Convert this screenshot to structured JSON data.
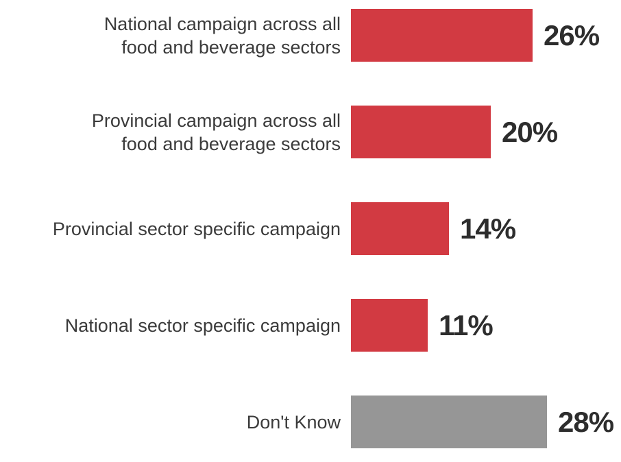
{
  "chart_data": {
    "type": "bar",
    "orientation": "horizontal",
    "title": "",
    "xlabel": "",
    "ylabel": "",
    "grid": false,
    "legend": false,
    "data_labels": "outside-end",
    "xlim": [
      0,
      28
    ],
    "categories": [
      "National campaign across all food and beverage sectors",
      "Provincial campaign across all food and beverage sectors",
      "Provincial sector specific campaign",
      "National sector specific campaign",
      "Don't Know"
    ],
    "values": [
      26,
      20,
      14,
      11,
      28
    ],
    "colors": {
      "bar_red": "#d23a42",
      "bar_gray": "#969696",
      "label_text": "#3b3b3b",
      "value_text": "#2d2d2d"
    },
    "items": [
      {
        "label": "National campaign across all\nfood and beverage sectors",
        "value": 26,
        "value_label": "26%",
        "color": "#d23a42"
      },
      {
        "label": "Provincial campaign across all\nfood and beverage sectors",
        "value": 20,
        "value_label": "20%",
        "color": "#d23a42"
      },
      {
        "label": "Provincial sector specific campaign",
        "value": 14,
        "value_label": "14%",
        "color": "#d23a42"
      },
      {
        "label": "National sector specific campaign",
        "value": 11,
        "value_label": "11%",
        "color": "#d23a42"
      },
      {
        "label": "Don't Know",
        "value": 28,
        "value_label": "28%",
        "color": "#969696"
      }
    ]
  }
}
